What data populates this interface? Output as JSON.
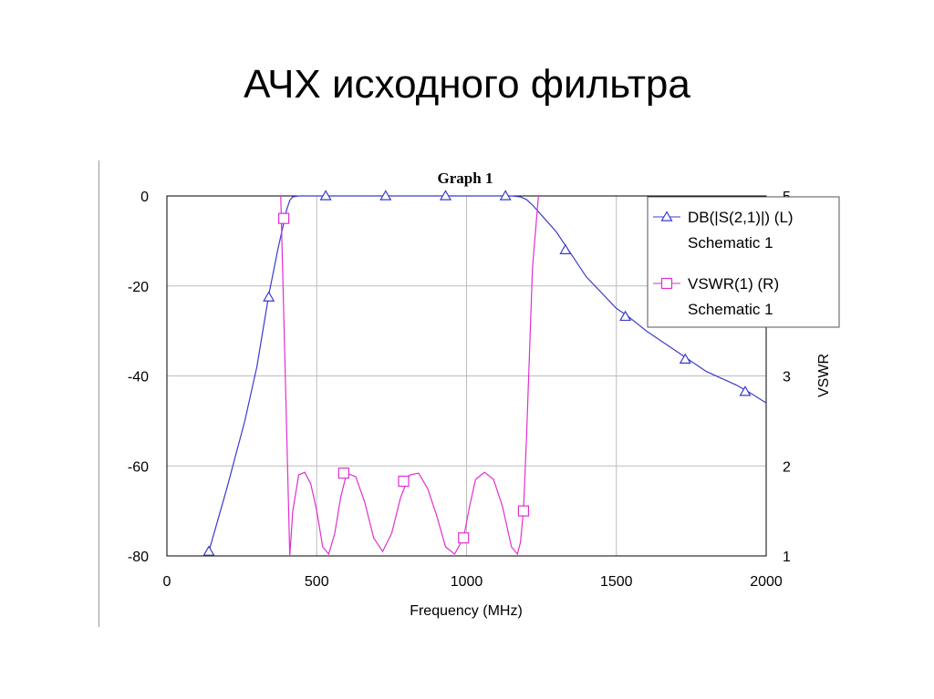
{
  "slide": {
    "title": "АЧХ исходного фильтра"
  },
  "chart_data": {
    "type": "line",
    "title": "Graph 1",
    "xlabel": "Frequency (MHz)",
    "ylabel_left": "",
    "ylabel_right": "VSWR",
    "xlim": [
      0,
      2000
    ],
    "ylim_left": [
      -80,
      0
    ],
    "ylim_right": [
      1,
      5
    ],
    "x_ticks": [
      0,
      500,
      1000,
      1500,
      2000
    ],
    "y_left_ticks": [
      0,
      -20,
      -40,
      -60,
      -80
    ],
    "y_right_ticks": [
      5,
      3,
      2,
      1
    ],
    "grid": true,
    "legend_position": "top-right",
    "series": [
      {
        "name": "DB(|S(2,1)|) (L)",
        "source": "Schematic 1",
        "axis": "left",
        "color": "#3b3bcc",
        "marker": "triangle",
        "x": [
          140,
          200,
          260,
          300,
          340,
          370,
          390,
          400,
          410,
          420,
          440,
          500,
          600,
          700,
          800,
          900,
          1000,
          1100,
          1150,
          1180,
          1200,
          1220,
          1240,
          1260,
          1300,
          1340,
          1400,
          1500,
          1540,
          1600,
          1700,
          1740,
          1800,
          1900,
          1940,
          2000
        ],
        "y": [
          -79,
          -65,
          -50,
          -38,
          -22,
          -12,
          -6,
          -3,
          -1,
          -0.2,
          0,
          0,
          0,
          0,
          0,
          0,
          0,
          0,
          0,
          -0.2,
          -0.8,
          -2,
          -3.5,
          -5,
          -8,
          -12,
          -18,
          -25,
          -26.8,
          -30,
          -34.5,
          -36.3,
          -39,
          -42,
          -43.5,
          -46
        ],
        "marker_x": [
          140,
          340,
          390,
          530,
          730,
          930,
          1130,
          1330,
          1530,
          1730,
          1930
        ],
        "marker_y": [
          -79,
          -22.5,
          -5,
          0,
          0,
          0,
          0,
          -12,
          -26.8,
          -36.3,
          -43.5
        ]
      },
      {
        "name": "VSWR(1) (R)",
        "source": "Schematic 1",
        "axis": "right",
        "color": "#e030d0",
        "marker": "square",
        "x": [
          380,
          395,
          410,
          420,
          440,
          460,
          480,
          500,
          520,
          540,
          560,
          580,
          600,
          630,
          660,
          690,
          720,
          750,
          780,
          810,
          840,
          870,
          900,
          930,
          960,
          990,
          1010,
          1030,
          1060,
          1090,
          1120,
          1150,
          1170,
          1180,
          1190,
          1200,
          1220,
          1240
        ],
        "y": [
          5,
          3,
          1,
          1.5,
          1.9,
          1.93,
          1.8,
          1.5,
          1.1,
          1.02,
          1.25,
          1.65,
          1.92,
          1.88,
          1.6,
          1.2,
          1.05,
          1.25,
          1.65,
          1.9,
          1.92,
          1.75,
          1.45,
          1.1,
          1.02,
          1.2,
          1.55,
          1.85,
          1.93,
          1.85,
          1.55,
          1.1,
          1.02,
          1.15,
          1.5,
          2.3,
          4.2,
          5
        ],
        "marker_x": [
          390,
          590,
          790,
          990,
          1190
        ],
        "marker_y": [
          4.75,
          1.92,
          1.83,
          1.2,
          1.5
        ]
      }
    ]
  }
}
